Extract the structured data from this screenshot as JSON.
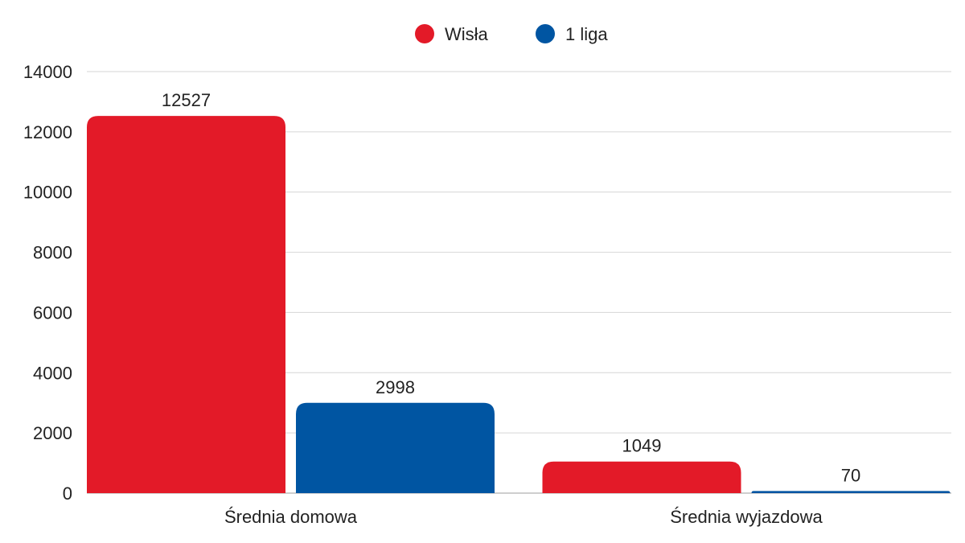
{
  "chart_data": {
    "type": "bar",
    "title": "",
    "xlabel": "",
    "ylabel": "",
    "categories": [
      "Średnia domowa",
      "Średnia wyjazdowa"
    ],
    "series": [
      {
        "name": "Wisła",
        "values": [
          12527,
          1049
        ],
        "color": "#e31a28"
      },
      {
        "name": "1 liga",
        "values": [
          2998,
          70
        ],
        "color": "#0055a2"
      }
    ],
    "ylim": [
      0,
      14000
    ],
    "yticks": [
      0,
      2000,
      4000,
      6000,
      8000,
      10000,
      12000,
      14000
    ],
    "grid": true,
    "legend_position": "top-center",
    "data_labels": true
  }
}
